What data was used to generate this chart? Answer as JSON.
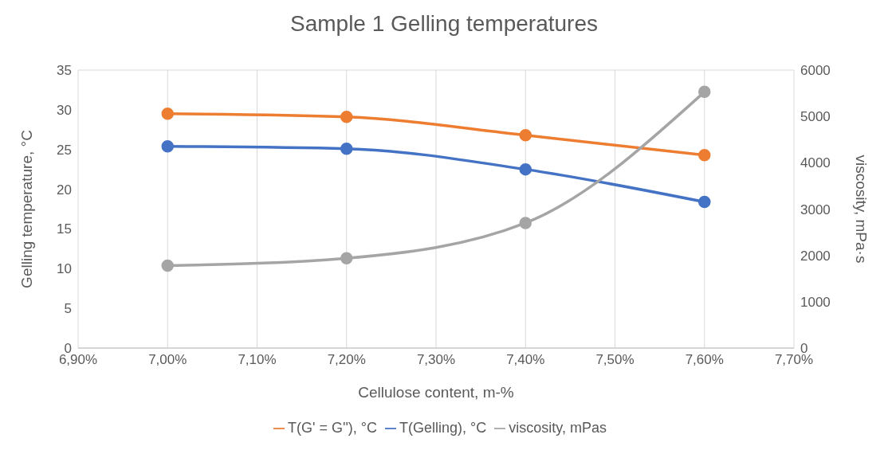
{
  "chart_data": {
    "type": "line",
    "title": "Sample 1 Gelling temperatures",
    "xlabel": "Cellulose content, m-%",
    "ylabel": "Gelling temperature, °C",
    "y2label": "viscosity, mPa·s",
    "x": [
      7.0,
      7.2,
      7.4,
      7.6
    ],
    "series": [
      {
        "name": "T(Gelling), °C",
        "color": "#4472c4",
        "values": [
          25.4,
          25.1,
          22.5,
          18.4
        ]
      },
      {
        "name": "T(G' = G''), °C",
        "color": "#ed7d31",
        "values": [
          29.5,
          29.1,
          26.8,
          24.3
        ]
      },
      {
        "name": "viscosity, mPas",
        "color": "#a5a5a5",
        "values": [
          1780,
          1940,
          2700,
          5530
        ],
        "axis": "y2"
      }
    ],
    "xlim": [
      6.9,
      7.7
    ],
    "xticks": [
      {
        "value": 6.9,
        "label": "6,90%"
      },
      {
        "value": 7.0,
        "label": "7,00%"
      },
      {
        "value": 7.1,
        "label": "7,10%"
      },
      {
        "value": 7.2,
        "label": "7,20%"
      },
      {
        "value": 7.3,
        "label": "7,30%"
      },
      {
        "value": 7.4,
        "label": "7,40%"
      },
      {
        "value": 7.5,
        "label": "7,50%"
      },
      {
        "value": 7.6,
        "label": "7,60%"
      },
      {
        "value": 7.7,
        "label": "7,70%"
      }
    ],
    "ylim": [
      0,
      35
    ],
    "yticks": [
      0,
      5,
      10,
      15,
      20,
      25,
      30,
      35
    ],
    "y2lim": [
      0,
      6000
    ],
    "y2ticks": [
      0,
      1000,
      2000,
      3000,
      4000,
      5000,
      6000
    ],
    "grid": true,
    "legend": "bottom",
    "marker": "circle",
    "line_style": "solid"
  }
}
